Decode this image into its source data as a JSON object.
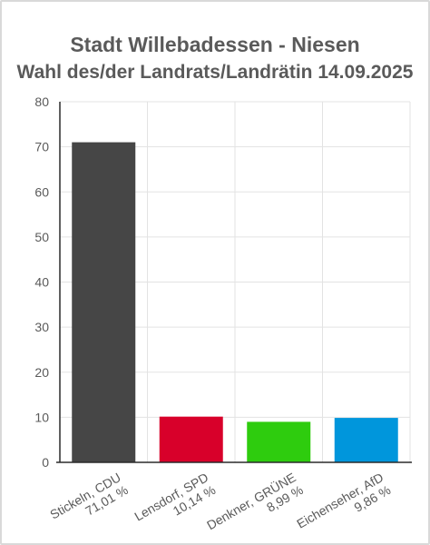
{
  "chart_data": {
    "type": "bar",
    "title": "Stadt Willebadessen - Niesen",
    "subtitle": "Wahl des/der Landrats/Landrätin 14.09.2025",
    "categories": [
      [
        "Stickeln, CDU",
        "71,01 %"
      ],
      [
        "Lensdorf, SPD",
        "10,14 %"
      ],
      [
        "Denkner, GRÜNE",
        "8,99 %"
      ],
      [
        "Eichenseher, AfD",
        "9,86 %"
      ]
    ],
    "values": [
      71.01,
      10.14,
      8.99,
      9.86
    ],
    "colors": [
      "#464646",
      "#d8002a",
      "#2ecc0e",
      "#0096dc"
    ],
    "ylim": [
      0,
      80
    ],
    "yticks": [
      0,
      10,
      20,
      30,
      40,
      50,
      60,
      70,
      80
    ],
    "grid": true,
    "xlabel": "",
    "ylabel": ""
  }
}
